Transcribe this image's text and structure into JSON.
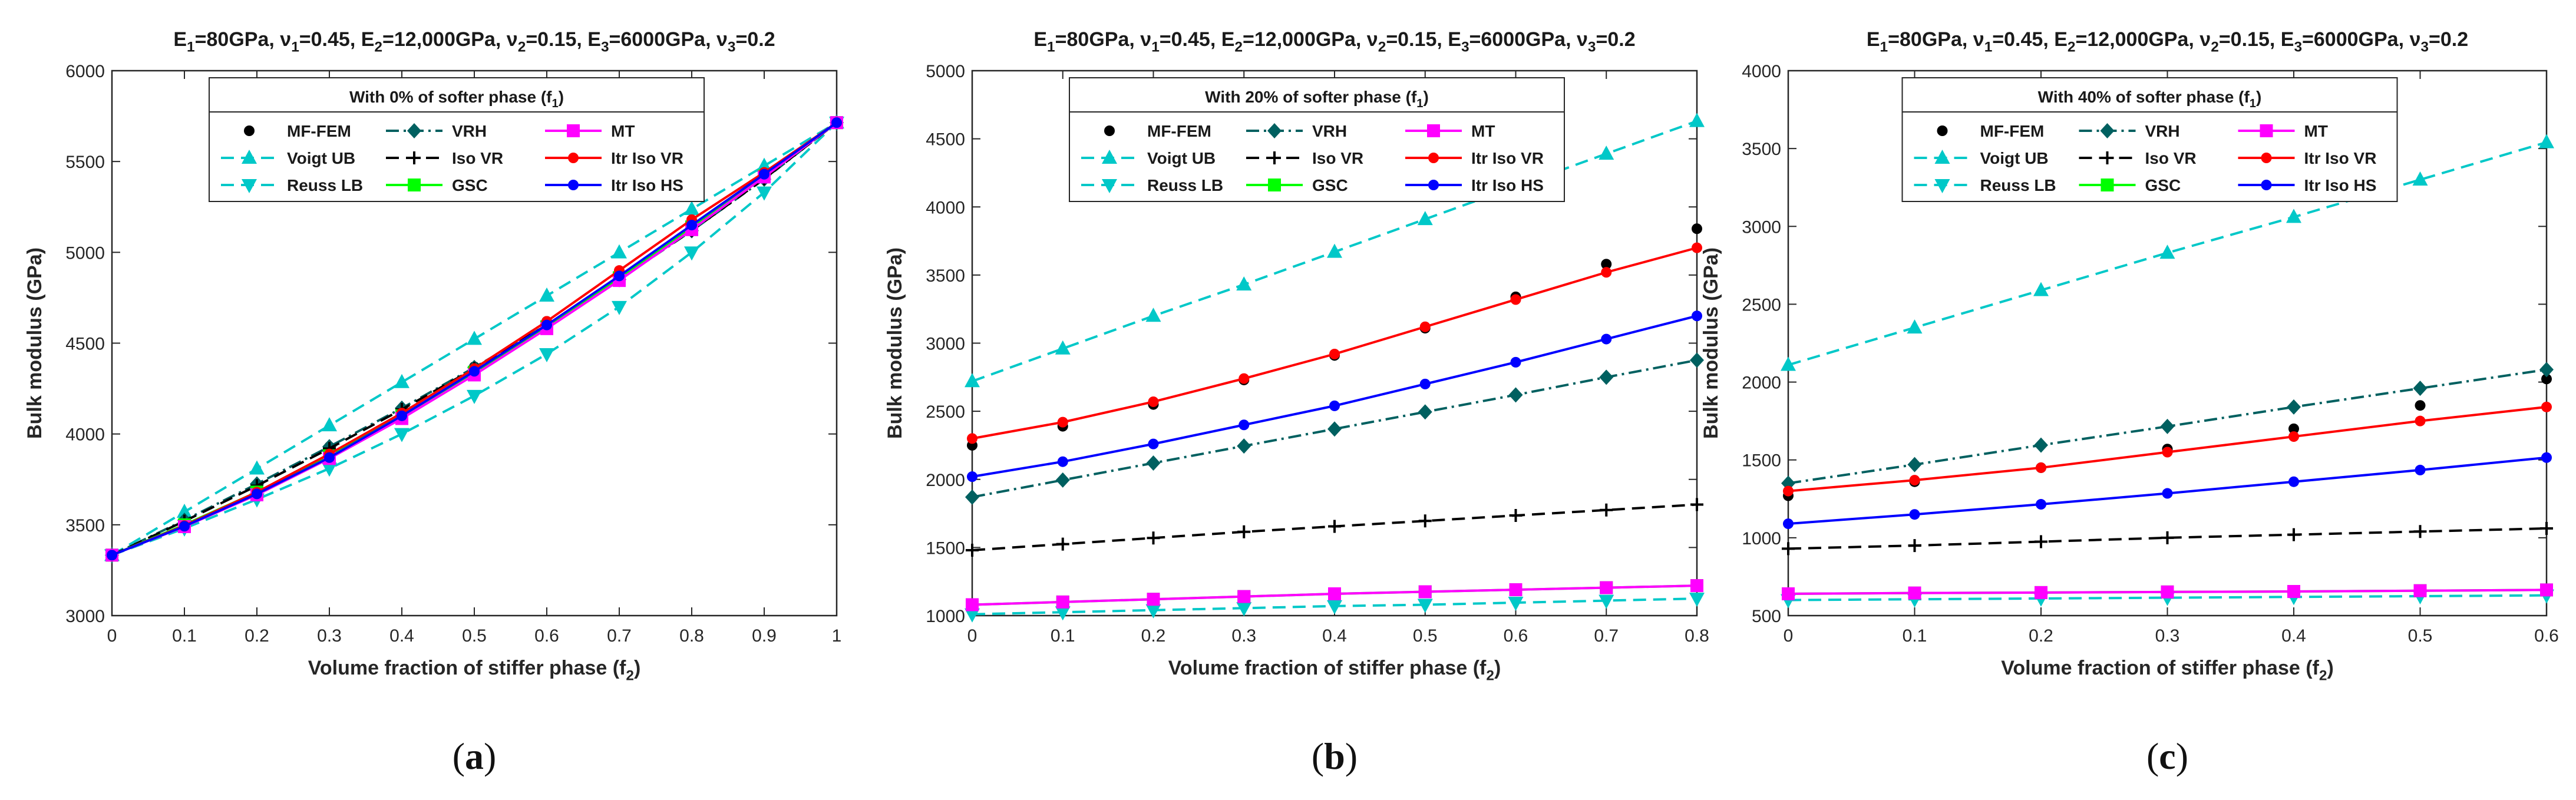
{
  "panel_captions": [
    "(a)",
    "(b)",
    "(c)"
  ],
  "series_styles": [
    {
      "name": "MF-FEM",
      "color": "#000000",
      "marker": "dot",
      "dash": "none",
      "lineVisible": false
    },
    {
      "name": "Voigt UB",
      "color": "#00c8c8",
      "marker": "tri-up",
      "dash": "dash",
      "lineVisible": true
    },
    {
      "name": "Reuss LB",
      "color": "#00c8c8",
      "marker": "tri-down",
      "dash": "dash",
      "lineVisible": true
    },
    {
      "name": "VRH",
      "color": "#006060",
      "marker": "diamond",
      "dash": "dashdot",
      "lineVisible": true
    },
    {
      "name": "Iso VR",
      "color": "#000000",
      "marker": "plus",
      "dash": "dash",
      "lineVisible": true
    },
    {
      "name": "GSC",
      "color": "#00ff00",
      "marker": "square",
      "dash": "solid",
      "lineVisible": true
    },
    {
      "name": "MT",
      "color": "#ff00ff",
      "marker": "square",
      "dash": "solid",
      "lineVisible": true
    },
    {
      "name": "Itr Iso VR",
      "color": "#ff0000",
      "marker": "dot",
      "dash": "solid",
      "lineVisible": true
    },
    {
      "name": "Itr Iso HS",
      "color": "#0000ff",
      "marker": "dot",
      "dash": "solid",
      "lineVisible": true
    }
  ],
  "chart_data": [
    {
      "type": "line",
      "title": "E1=80GPa, ν1=0.45,  E2=12,000GPa, ν2=0.15,  E3=6000GPa, ν3=0.2",
      "legend_title": "With 0% of softer phase (f1)",
      "xlabel": "Volume fraction of stiffer phase (f2)",
      "ylabel": "Bulk modulus (GPa)",
      "xlim": [
        0,
        1
      ],
      "ylim": [
        3000,
        6000
      ],
      "xticks": [
        0,
        0.1,
        0.2,
        0.3,
        0.4,
        0.5,
        0.6,
        0.7,
        0.8,
        0.9,
        1
      ],
      "xtick_labels": [
        "0",
        "0.1",
        "0.2",
        "0.3",
        "0.4",
        "0.5",
        "0.6",
        "0.7",
        "0.8",
        "0.9",
        "1"
      ],
      "yticks": [
        3000,
        3500,
        4000,
        4500,
        5000,
        5500,
        6000
      ],
      "ytick_labels": [
        "3000",
        "3500",
        "4000",
        "4500",
        "5000",
        "5500",
        "6000"
      ],
      "x": [
        0,
        0.1,
        0.2,
        0.3,
        0.4,
        0.5,
        0.6,
        0.7,
        0.8,
        0.9,
        1
      ],
      "series": [
        {
          "name": "MF-FEM",
          "values": [
            3333,
            3530,
            3720,
            3930,
            4140,
            4370,
            4620,
            4880,
            5140,
            5420,
            5714
          ]
        },
        {
          "name": "Voigt UB",
          "values": [
            3333,
            3571,
            3809,
            4047,
            4285,
            4523,
            4761,
            4999,
            5238,
            5476,
            5714
          ]
        },
        {
          "name": "Reuss LB",
          "values": [
            3333,
            3480,
            3640,
            3810,
            4000,
            4210,
            4440,
            4700,
            5000,
            5330,
            5714
          ]
        },
        {
          "name": "VRH",
          "values": [
            3333,
            3525,
            3725,
            3930,
            4142,
            4366,
            4600,
            4850,
            5119,
            5403,
            5714
          ]
        },
        {
          "name": "Iso VR",
          "values": [
            3333,
            3520,
            3715,
            3920,
            4135,
            4360,
            4600,
            4855,
            5120,
            5405,
            5714
          ]
        },
        {
          "name": "GSC",
          "values": [
            3333,
            3500,
            3680,
            3880,
            4100,
            4340,
            4590,
            4860,
            5140,
            5420,
            5714
          ]
        },
        {
          "name": "MT",
          "values": [
            3333,
            3490,
            3665,
            3865,
            4085,
            4325,
            4580,
            4845,
            5125,
            5415,
            5714
          ]
        },
        {
          "name": "Itr Iso VR",
          "values": [
            3333,
            3495,
            3680,
            3890,
            4115,
            4360,
            4620,
            4900,
            5180,
            5440,
            5714
          ]
        },
        {
          "name": "Itr Iso HS",
          "values": [
            3333,
            3492,
            3670,
            3870,
            4100,
            4345,
            4600,
            4870,
            5150,
            5430,
            5714
          ]
        }
      ]
    },
    {
      "type": "line",
      "title": "E1=80GPa, ν1=0.45,  E2=12,000GPa, ν2=0.15,  E3=6000GPa, ν3=0.2",
      "legend_title": "With 20% of softer phase (f1)",
      "xlabel": "Volume fraction of stiffer phase (f2)",
      "ylabel": "Bulk modulus (GPa)",
      "xlim": [
        0,
        0.8
      ],
      "ylim": [
        1000,
        5000
      ],
      "xticks": [
        0,
        0.1,
        0.2,
        0.3,
        0.4,
        0.5,
        0.6,
        0.7,
        0.8
      ],
      "xtick_labels": [
        "0",
        "0.1",
        "0.2",
        "0.3",
        "0.4",
        "0.5",
        "0.6",
        "0.7",
        "0.8"
      ],
      "yticks": [
        1000,
        1500,
        2000,
        2500,
        3000,
        3500,
        4000,
        4500,
        5000
      ],
      "ytick_labels": [
        "1000",
        "1500",
        "2000",
        "2500",
        "3000",
        "3500",
        "4000",
        "4500",
        "5000"
      ],
      "x": [
        0,
        0.1,
        0.2,
        0.3,
        0.4,
        0.5,
        0.6,
        0.7,
        0.8
      ],
      "series": [
        {
          "name": "MF-FEM",
          "values": [
            2250,
            2390,
            2550,
            2730,
            2910,
            3110,
            3340,
            3580,
            3840
          ]
        },
        {
          "name": "Voigt UB",
          "values": [
            2720,
            2960,
            3200,
            3430,
            3670,
            3910,
            4150,
            4390,
            4630
          ]
        },
        {
          "name": "Reuss LB",
          "values": [
            1010,
            1025,
            1040,
            1055,
            1070,
            1080,
            1095,
            1110,
            1125
          ]
        },
        {
          "name": "VRH",
          "values": [
            1870,
            1995,
            2120,
            2245,
            2370,
            2495,
            2620,
            2750,
            2875
          ]
        },
        {
          "name": "Iso VR",
          "values": [
            1480,
            1525,
            1570,
            1615,
            1655,
            1695,
            1735,
            1775,
            1815
          ]
        },
        {
          "name": "GSC",
          "values": [
            1080,
            1100,
            1120,
            1140,
            1160,
            1175,
            1190,
            1205,
            1220
          ]
        },
        {
          "name": "MT",
          "values": [
            1080,
            1100,
            1120,
            1140,
            1160,
            1175,
            1190,
            1205,
            1220
          ]
        },
        {
          "name": "Itr Iso VR",
          "values": [
            2300,
            2420,
            2570,
            2740,
            2920,
            3120,
            3320,
            3520,
            3700
          ]
        },
        {
          "name": "Itr Iso HS",
          "values": [
            2020,
            2130,
            2260,
            2400,
            2540,
            2700,
            2860,
            3030,
            3200
          ]
        }
      ]
    },
    {
      "type": "line",
      "title": "E1=80GPa, ν1=0.45,  E2=12,000GPa, ν2=0.15,  E3=6000GPa, ν3=0.2",
      "legend_title": "With 40% of softer phase (f1)",
      "xlabel": "Volume fraction of stiffer phase (f2)",
      "ylabel": "Bulk modulus (GPa)",
      "xlim": [
        0,
        0.6
      ],
      "ylim": [
        500,
        4000
      ],
      "xticks": [
        0,
        0.1,
        0.2,
        0.3,
        0.4,
        0.5,
        0.6
      ],
      "xtick_labels": [
        "0",
        "0.1",
        "0.2",
        "0.3",
        "0.4",
        "0.5",
        "0.6"
      ],
      "yticks": [
        500,
        1000,
        1500,
        2000,
        2500,
        3000,
        3500,
        4000
      ],
      "ytick_labels": [
        "500",
        "1000",
        "1500",
        "2000",
        "2500",
        "3000",
        "3500",
        "4000"
      ],
      "x": [
        0,
        0.1,
        0.2,
        0.3,
        0.4,
        0.5,
        0.6
      ],
      "series": [
        {
          "name": "MF-FEM",
          "values": [
            1270,
            1360,
            1450,
            1570,
            1700,
            1850,
            2020
          ]
        },
        {
          "name": "Voigt UB",
          "values": [
            2110,
            2350,
            2590,
            2830,
            3060,
            3300,
            3540
          ]
        },
        {
          "name": "Reuss LB",
          "values": [
            600,
            605,
            610,
            615,
            620,
            625,
            630
          ]
        },
        {
          "name": "VRH",
          "values": [
            1350,
            1470,
            1595,
            1715,
            1840,
            1960,
            2080
          ]
        },
        {
          "name": "Iso VR",
          "values": [
            930,
            950,
            975,
            1000,
            1020,
            1040,
            1060
          ]
        },
        {
          "name": "GSC",
          "values": [
            640,
            645,
            648,
            652,
            655,
            660,
            665
          ]
        },
        {
          "name": "MT",
          "values": [
            640,
            645,
            648,
            652,
            655,
            660,
            665
          ]
        },
        {
          "name": "Itr Iso VR",
          "values": [
            1300,
            1370,
            1450,
            1550,
            1650,
            1750,
            1840
          ]
        },
        {
          "name": "Itr Iso HS",
          "values": [
            1090,
            1150,
            1215,
            1285,
            1360,
            1435,
            1515
          ]
        }
      ]
    }
  ]
}
